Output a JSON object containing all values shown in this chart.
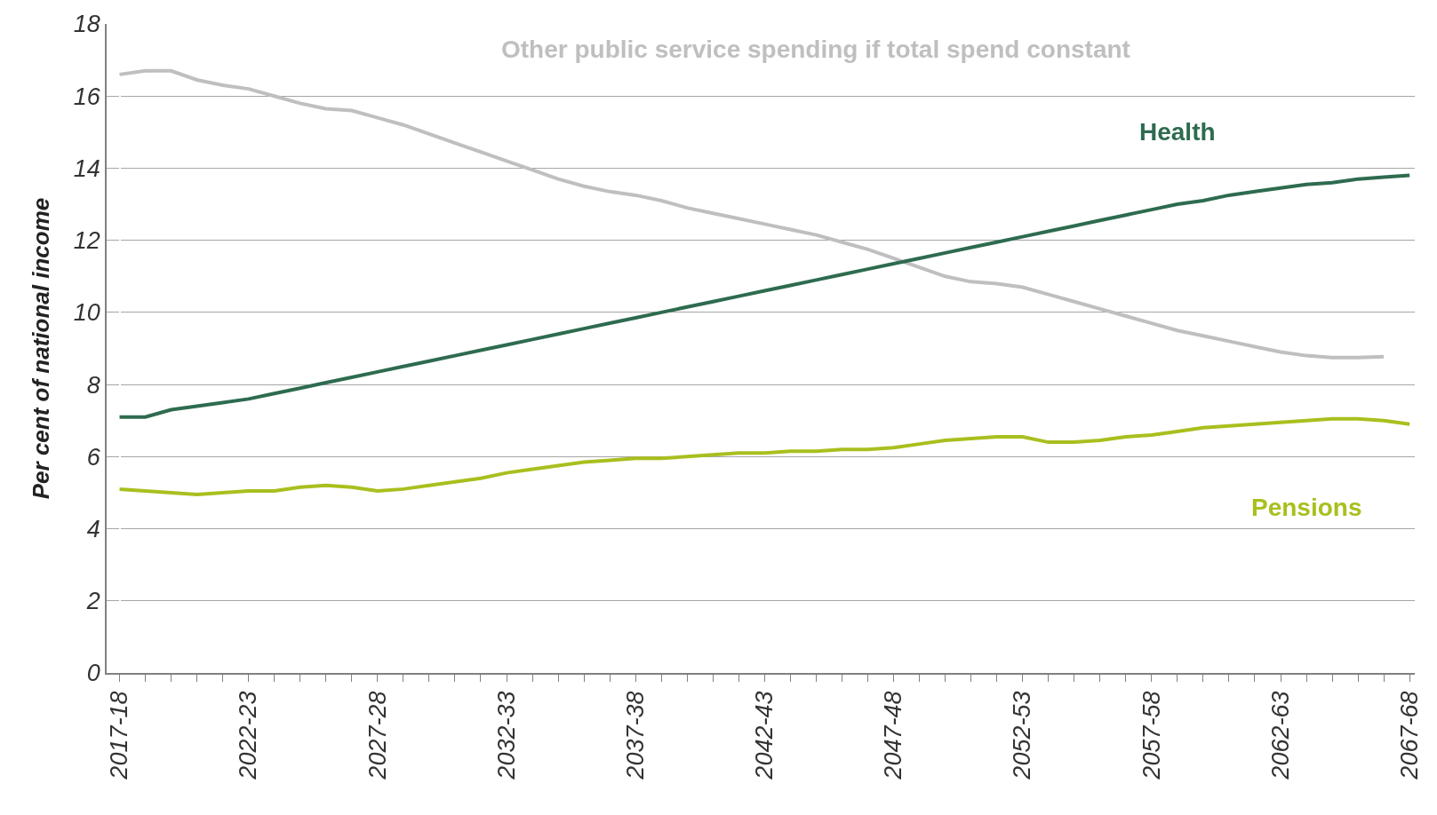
{
  "chart_data": {
    "type": "line",
    "ylabel": "Per cent of national income",
    "categories": [
      "2017-18",
      null,
      null,
      null,
      null,
      "2022-23",
      null,
      null,
      null,
      null,
      "2027-28",
      null,
      null,
      null,
      null,
      "2032-33",
      null,
      null,
      null,
      null,
      "2037-38",
      null,
      null,
      null,
      null,
      "2042-43",
      null,
      null,
      null,
      null,
      "2047-48",
      null,
      null,
      null,
      null,
      "2052-53",
      null,
      null,
      null,
      null,
      "2057-58",
      null,
      null,
      null,
      null,
      "2062-63",
      null,
      null,
      null,
      null,
      "2067-68"
    ],
    "series": [
      {
        "name": "Other public service spending if total spend constant",
        "color": "#bfbfbf",
        "values": [
          16.6,
          16.7,
          16.7,
          16.45,
          16.3,
          16.2,
          16.0,
          15.8,
          15.65,
          15.6,
          15.4,
          15.2,
          14.95,
          14.7,
          14.45,
          14.2,
          13.95,
          13.7,
          13.5,
          13.35,
          13.25,
          13.1,
          12.9,
          12.75,
          12.6,
          12.45,
          12.3,
          12.15,
          11.95,
          11.75,
          11.5,
          11.25,
          11.0,
          10.85,
          10.8,
          10.7,
          10.5,
          10.3,
          10.1,
          9.9,
          9.7,
          9.5,
          9.35,
          9.2,
          9.05,
          8.9,
          8.8,
          8.75,
          8.75,
          8.77,
          null
        ]
      },
      {
        "name": "Health",
        "color": "#2e6b4f",
        "values": [
          7.1,
          7.1,
          7.3,
          7.4,
          7.5,
          7.6,
          7.75,
          7.9,
          8.05,
          8.2,
          8.35,
          8.5,
          8.65,
          8.8,
          8.95,
          9.1,
          9.25,
          9.4,
          9.55,
          9.7,
          9.85,
          10.0,
          10.15,
          10.3,
          10.45,
          10.6,
          10.75,
          10.9,
          11.05,
          11.2,
          11.35,
          11.5,
          11.65,
          11.8,
          11.95,
          12.1,
          12.25,
          12.4,
          12.55,
          12.7,
          12.85,
          13.0,
          13.1,
          13.25,
          13.35,
          13.45,
          13.55,
          13.6,
          13.7,
          13.75,
          13.8
        ]
      },
      {
        "name": "Pensions",
        "color": "#a9bf1e",
        "values": [
          5.1,
          5.05,
          5.0,
          4.95,
          5.0,
          5.05,
          5.05,
          5.15,
          5.2,
          5.15,
          5.05,
          5.1,
          5.2,
          5.3,
          5.4,
          5.55,
          5.65,
          5.75,
          5.85,
          5.9,
          5.95,
          5.95,
          6.0,
          6.05,
          6.1,
          6.1,
          6.15,
          6.15,
          6.2,
          6.2,
          6.25,
          6.35,
          6.45,
          6.5,
          6.55,
          6.55,
          6.4,
          6.4,
          6.45,
          6.55,
          6.6,
          6.7,
          6.8,
          6.85,
          6.9,
          6.95,
          7.0,
          7.05,
          7.05,
          7.0,
          6.9
        ]
      }
    ],
    "ylim": [
      0,
      18
    ],
    "yticks": [
      0,
      2,
      4,
      6,
      8,
      10,
      12,
      14,
      16,
      18
    ],
    "grid": "y",
    "legend": false,
    "line_style": "solid",
    "marker": "none"
  }
}
